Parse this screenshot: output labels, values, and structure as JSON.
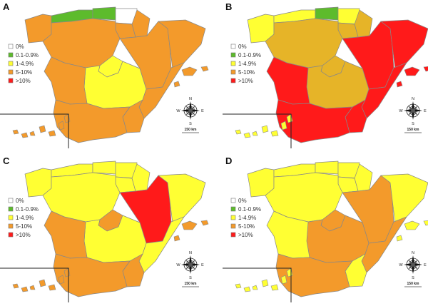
{
  "colors": {
    "c0": "#ffffff",
    "c1": "#5dbb2c",
    "c2": "#ffff33",
    "c3": "#e6b428",
    "c4": "#f39a2b",
    "c5": "#ff1a1a"
  },
  "legend": [
    {
      "label": "0%",
      "color": "c0"
    },
    {
      "label": "0.1-0.9%",
      "color": "c1"
    },
    {
      "label": "1-4.9%",
      "color": "c2"
    },
    {
      "label": "5-10%",
      "color": "c4"
    },
    {
      "label": ">10%",
      "color": "c5"
    }
  ],
  "compass": {
    "n": "N",
    "s": "S",
    "e": "E",
    "w": "W",
    "scale": "150 km"
  },
  "panels": [
    {
      "letter": "A",
      "colors": {
        "galicia": "c4",
        "asturias": "c1",
        "cantabria": "c1",
        "basque": "c0",
        "navarra": "c4",
        "castilla_leon": "c4",
        "la_rioja": "c4",
        "aragon": "c4",
        "catalonia": "c4",
        "madrid": "c2",
        "castilla_mancha": "c2",
        "valencia": "c4",
        "extremadura": "c4",
        "andalusia": "c4",
        "murcia": "c4",
        "balearic": "c4",
        "canary": "c4"
      }
    },
    {
      "letter": "B",
      "colors": {
        "galicia": "c2",
        "asturias": "c2",
        "cantabria": "c1",
        "basque": "c2",
        "navarra": "c3",
        "castilla_leon": "c3",
        "la_rioja": "c3",
        "aragon": "c5",
        "catalonia": "c5",
        "madrid": "c3",
        "castilla_mancha": "c3",
        "valencia": "c5",
        "extremadura": "c5",
        "andalusia": "c5",
        "murcia": "c5",
        "balearic": "c5",
        "canary": "c2"
      }
    },
    {
      "letter": "C",
      "colors": {
        "galicia": "c2",
        "asturias": "c2",
        "cantabria": "c2",
        "basque": "c2",
        "navarra": "c2",
        "castilla_leon": "c2",
        "la_rioja": "c2",
        "aragon": "c5",
        "catalonia": "c2",
        "madrid": "c4",
        "castilla_mancha": "c2",
        "valencia": "c2",
        "extremadura": "c4",
        "andalusia": "c4",
        "murcia": "c4",
        "balearic": "c4",
        "canary": "c4"
      }
    },
    {
      "letter": "D",
      "colors": {
        "galicia": "c2",
        "asturias": "c2",
        "cantabria": "c2",
        "basque": "c2",
        "navarra": "c2",
        "castilla_leon": "c2",
        "la_rioja": "c2",
        "aragon": "c4",
        "catalonia": "c2",
        "madrid": "c4",
        "castilla_mancha": "c4",
        "valencia": "c4",
        "extremadura": "c2",
        "andalusia": "c4",
        "murcia": "c2",
        "balearic": "c2",
        "canary": "c2"
      }
    }
  ]
}
